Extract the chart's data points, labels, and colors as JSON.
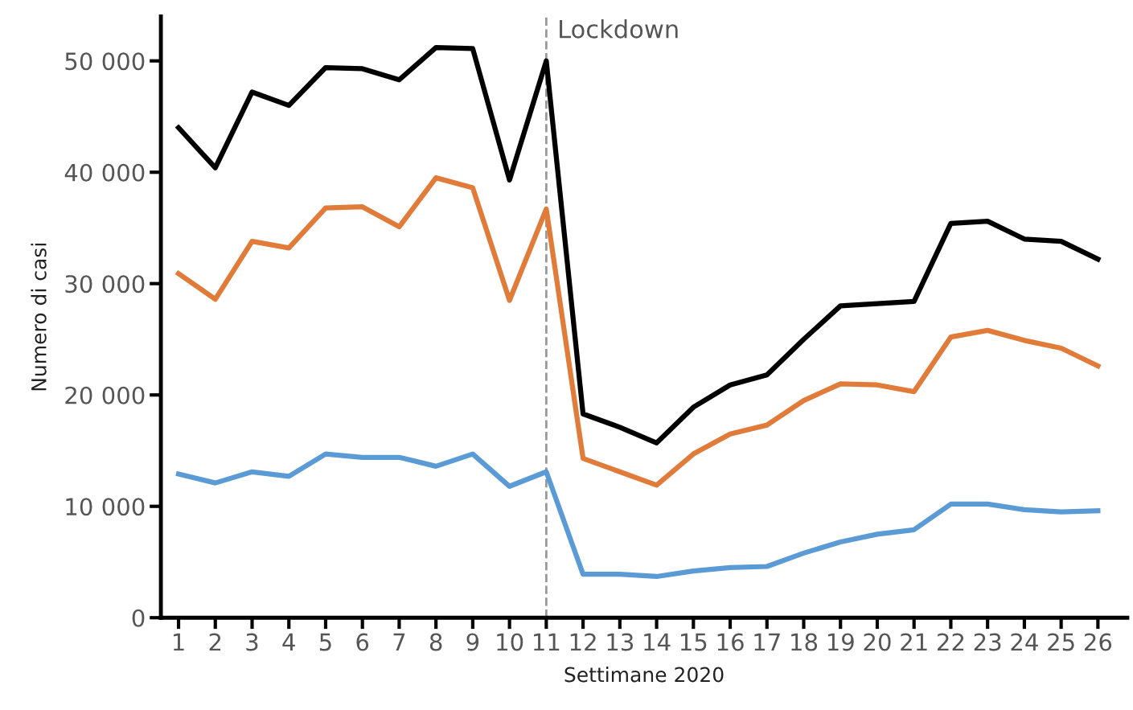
{
  "chart_data": {
    "type": "line",
    "xlabel": "Settimane 2020",
    "ylabel": "Numero di casi",
    "categories": [
      "1",
      "2",
      "3",
      "4",
      "5",
      "6",
      "7",
      "8",
      "9",
      "10",
      "11",
      "12",
      "13",
      "14",
      "15",
      "16",
      "17",
      "18",
      "19",
      "20",
      "21",
      "22",
      "23",
      "24",
      "25",
      "26"
    ],
    "series": [
      {
        "color": "#000000",
        "values": [
          44000,
          40400,
          47200,
          46000,
          49400,
          49300,
          48300,
          51200,
          51100,
          39300,
          50000,
          18300,
          17100,
          15700,
          18900,
          20900,
          21800,
          25000,
          28000,
          28200,
          28400,
          35400,
          35600,
          34000,
          33800,
          32200
        ]
      },
      {
        "color": "#e07b39",
        "values": [
          30900,
          28600,
          33800,
          33200,
          36800,
          36900,
          35100,
          39500,
          38600,
          28500,
          36700,
          14300,
          13100,
          11900,
          14700,
          16500,
          17300,
          19500,
          21000,
          20900,
          20300,
          25200,
          25800,
          24900,
          24200,
          22600
        ]
      },
      {
        "color": "#5b9bd5",
        "values": [
          12900,
          12100,
          13100,
          12700,
          14700,
          14400,
          14400,
          13600,
          14700,
          11800,
          13100,
          3900,
          3900,
          3700,
          4200,
          4500,
          4600,
          5800,
          6800,
          7500,
          7900,
          10200,
          10200,
          9700,
          9500,
          9600
        ]
      }
    ],
    "ylim": [
      0,
      54000
    ],
    "yticks": [
      0,
      {
        "value": 10000,
        "label": "10 000"
      },
      {
        "value": 20000,
        "label": "20 000"
      },
      {
        "value": 30000,
        "label": "30 000"
      },
      {
        "value": 40000,
        "label": "40 000"
      },
      {
        "value": 50000,
        "label": "50 000"
      }
    ],
    "ref_lines": [
      {
        "axis": "x",
        "value": "11",
        "label": "Lockdown",
        "color": "#999999",
        "line_style": "dashed"
      }
    ],
    "grid": false,
    "legend": false,
    "marker": "none",
    "line_style": "solid"
  }
}
